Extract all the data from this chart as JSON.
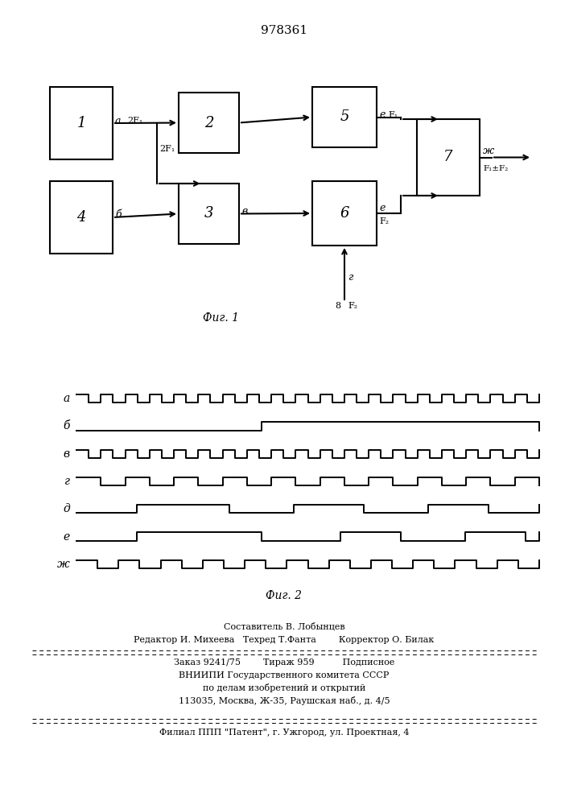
{
  "title_number": "978361",
  "background_color": "#ffffff",
  "line_color": "#000000",
  "fig1_caption": "Фиг. 1",
  "fig2_caption": "Фиг. 2"
}
